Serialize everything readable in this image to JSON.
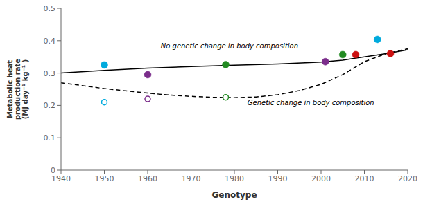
{
  "chart_data": {
    "type": "line",
    "xlabel": "Genotype",
    "ylabel": "Metabolic heat\nproduction rate\n(MJ day⁻¹ kg⁻¹ )",
    "xlim": [
      1940,
      2020
    ],
    "ylim": [
      0,
      0.5
    ],
    "xticks": [
      1940,
      1950,
      1960,
      1970,
      1980,
      1990,
      2000,
      2010,
      2020
    ],
    "yticks": [
      0,
      0.1,
      0.2,
      0.3,
      0.4,
      0.5
    ],
    "grid": false,
    "series": [
      {
        "type": "line",
        "color": "#000000",
        "line_style": "solid",
        "x": [
          1940,
          1950,
          1960,
          1970,
          1975,
          1980,
          1990,
          2000,
          2005,
          2010,
          2015,
          2020
        ],
        "values": [
          0.3,
          0.308,
          0.315,
          0.32,
          0.322,
          0.324,
          0.328,
          0.334,
          0.34,
          0.35,
          0.36,
          0.372
        ]
      },
      {
        "type": "line",
        "color": "#000000",
        "line_style": "dashed",
        "x": [
          1940,
          1950,
          1960,
          1965,
          1970,
          1975,
          1980,
          1985,
          1990,
          1995,
          2000,
          2005,
          2010,
          2015,
          2020
        ],
        "values": [
          0.27,
          0.252,
          0.238,
          0.232,
          0.228,
          0.225,
          0.224,
          0.226,
          0.233,
          0.246,
          0.265,
          0.295,
          0.335,
          0.36,
          0.375
        ]
      },
      {
        "type": "scatter",
        "marker": "filled_circle",
        "x": [
          1950,
          1960,
          1978,
          2001,
          2005,
          2008,
          2013,
          2016
        ],
        "values": [
          0.325,
          0.295,
          0.326,
          0.335,
          0.357,
          0.357,
          0.404,
          0.36
        ],
        "colors": [
          "#00AADD",
          "#7B2D8B",
          "#228B22",
          "#7B2D8B",
          "#228B22",
          "#CC1111",
          "#00AADD",
          "#CC1111"
        ]
      },
      {
        "type": "scatter",
        "marker": "open_circle",
        "x": [
          1950,
          1960,
          1978
        ],
        "values": [
          0.21,
          0.22,
          0.225
        ],
        "colors": [
          "#00AADD",
          "#7B2D8B",
          "#228B22"
        ]
      }
    ],
    "annotations": [
      {
        "text": "No genetic change in body composition",
        "x": 1963,
        "y": 0.372
      },
      {
        "text": "Genetic change in body composition",
        "x": 1983,
        "y": 0.197
      }
    ]
  }
}
